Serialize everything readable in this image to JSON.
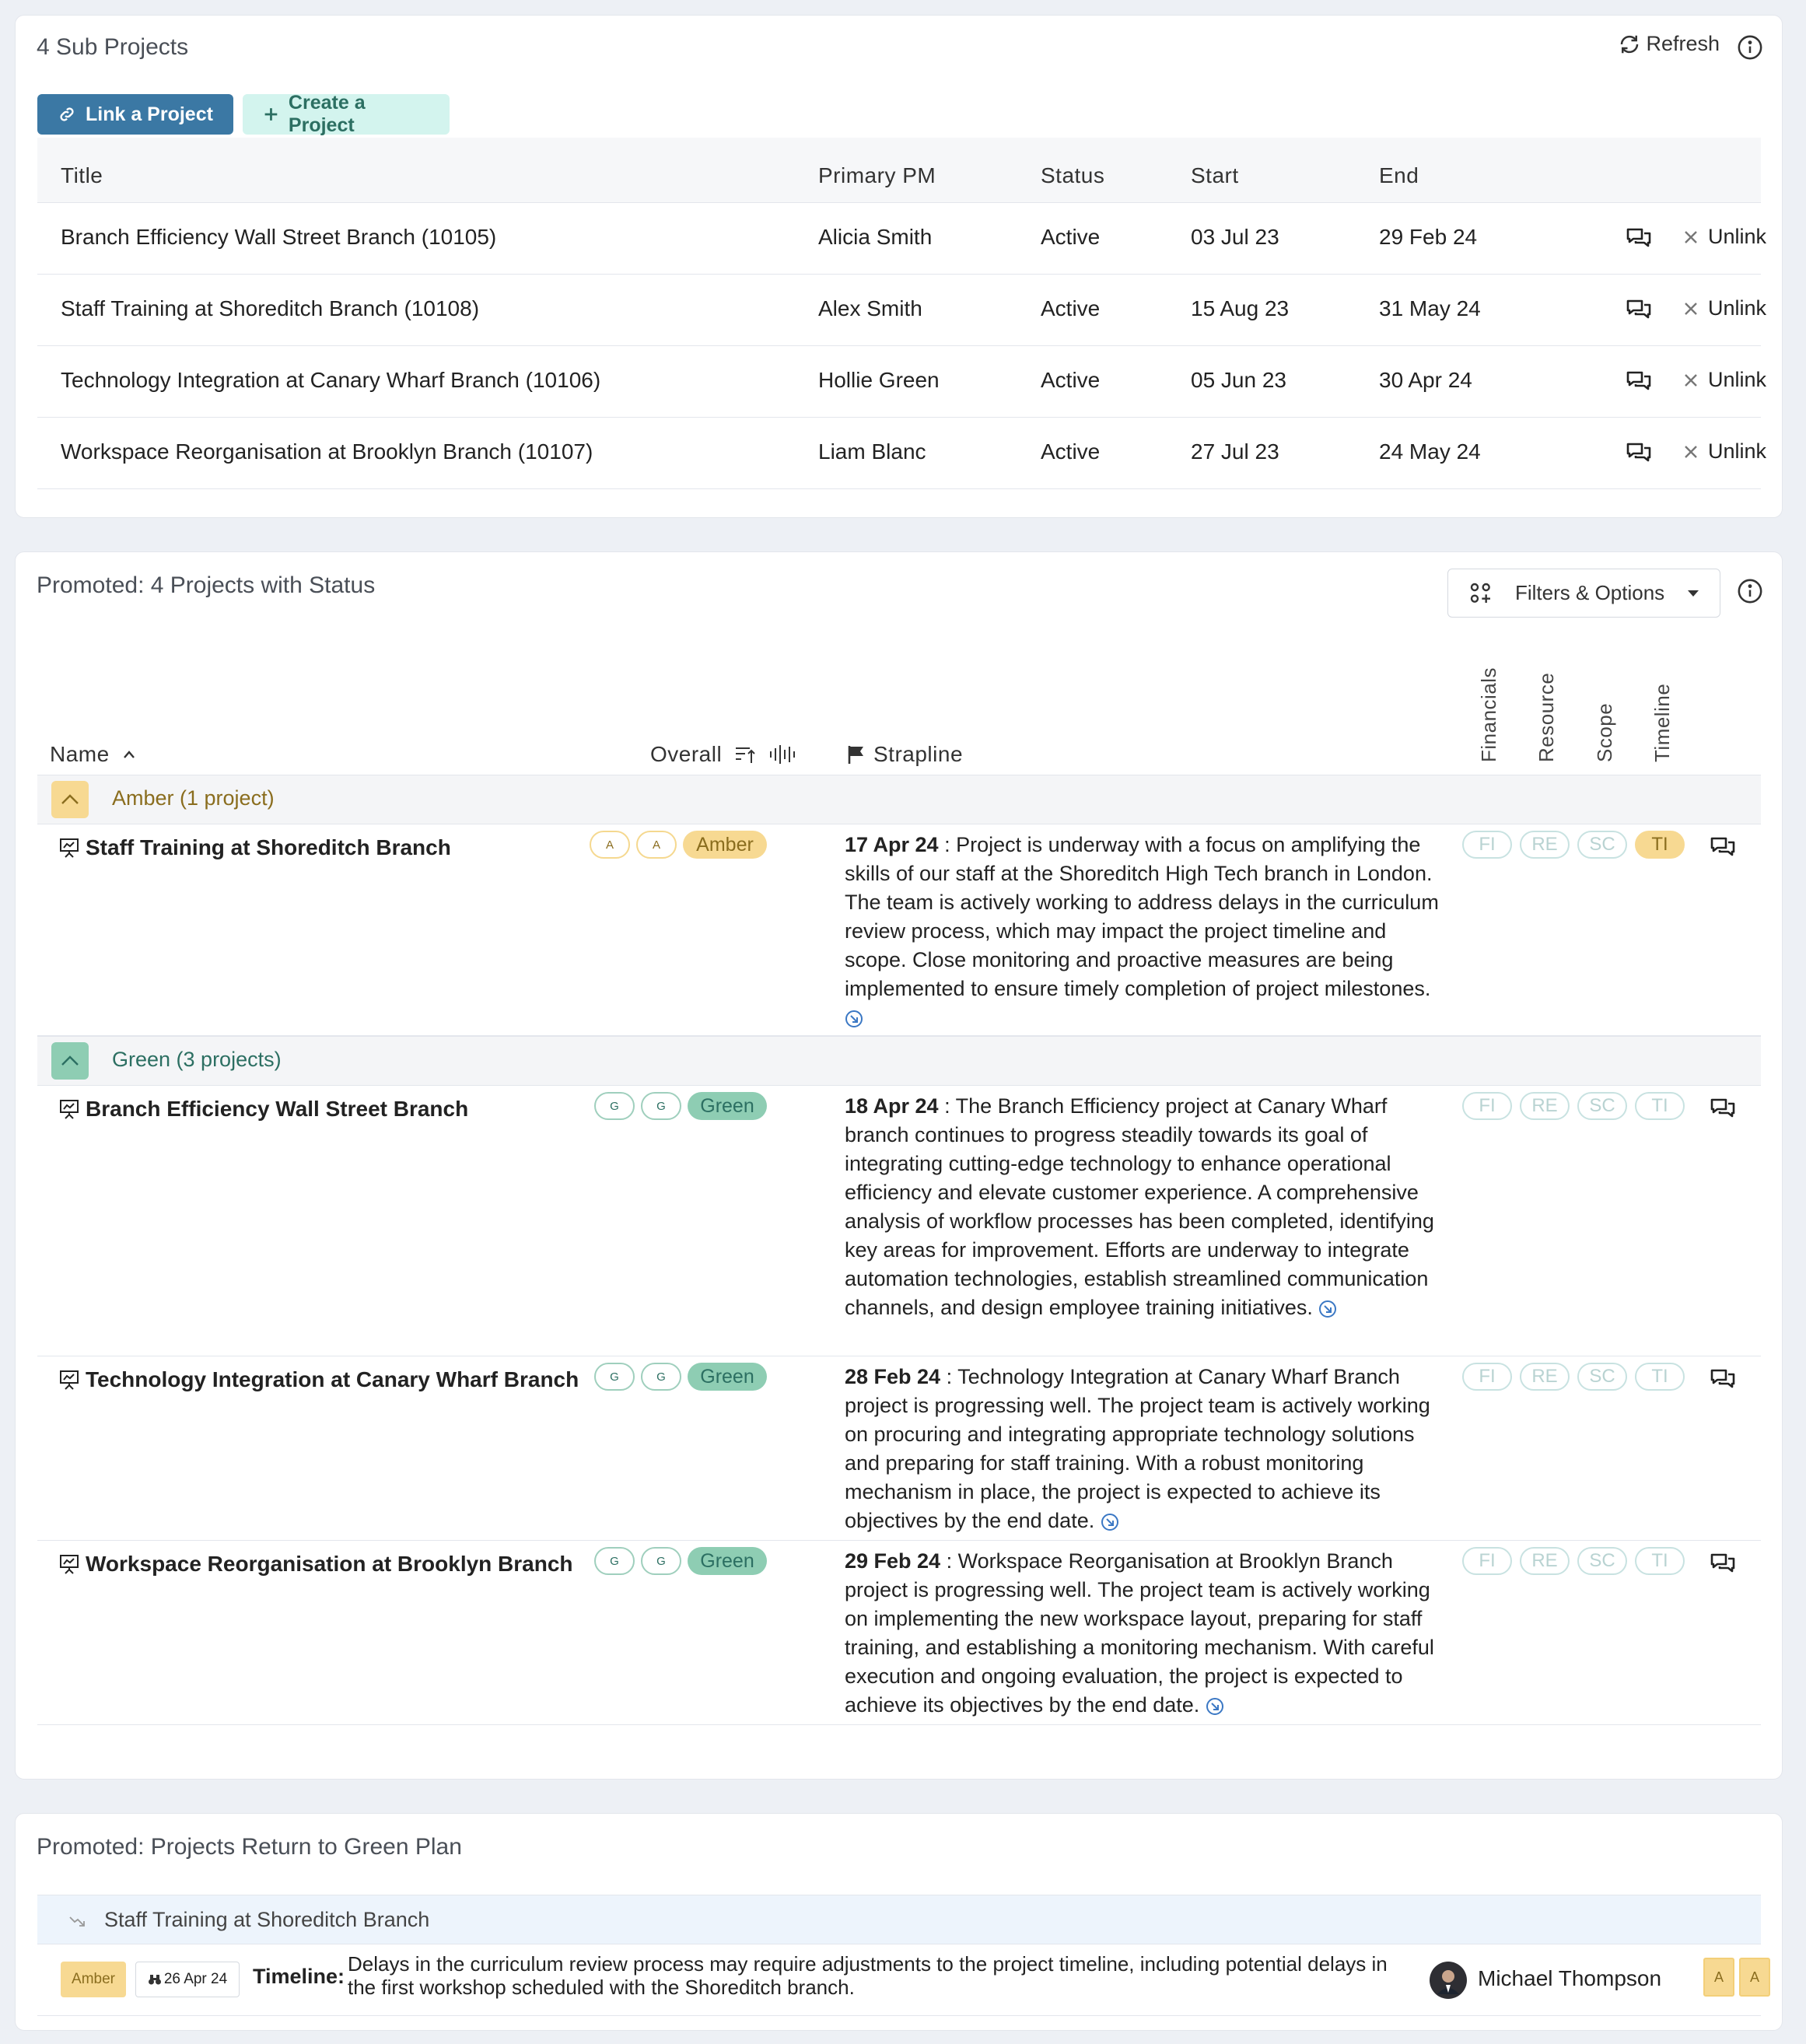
{
  "sub_projects": {
    "title": "4 Sub Projects",
    "refresh_label": "Refresh",
    "link_label": "Link a Project",
    "create_label": "Create a Project",
    "columns": {
      "title": "Title",
      "pm": "Primary PM",
      "status": "Status",
      "start": "Start",
      "end": "End"
    },
    "unlink_label": "Unlink",
    "rows": [
      {
        "title": "Branch Efficiency Wall Street Branch (10105)",
        "pm": "Alicia Smith",
        "status": "Active",
        "start": "03 Jul 23",
        "end": "29 Feb 24"
      },
      {
        "title": "Staff Training at Shoreditch Branch (10108)",
        "pm": "Alex Smith",
        "status": "Active",
        "start": "15 Aug 23",
        "end": "31 May 24"
      },
      {
        "title": "Technology Integration at Canary Wharf Branch (10106)",
        "pm": "Hollie Green",
        "status": "Active",
        "start": "05 Jun 23",
        "end": "30 Apr 24"
      },
      {
        "title": "Workspace Reorganisation at Brooklyn Branch (10107)",
        "pm": "Liam Blanc",
        "status": "Active",
        "start": "27 Jul 23",
        "end": "24 May 24"
      }
    ]
  },
  "promoted": {
    "title": "Promoted: 4 Projects with Status",
    "filters_label": "Filters & Options",
    "columns": {
      "name": "Name",
      "overall": "Overall",
      "strapline": "Strapline",
      "financials": "Financials",
      "resource": "Resource",
      "scope": "Scope",
      "timeline": "Timeline"
    },
    "dim_labels": {
      "fi": "FI",
      "re": "RE",
      "sc": "SC",
      "ti": "TI"
    },
    "groups": [
      {
        "label": "Amber (1 project)",
        "color": "#f7d992",
        "text_color": "#8a6d1e"
      },
      {
        "label": "Green (3 projects)",
        "color": "#8ecdb3",
        "text_color": "#2c6f62"
      }
    ],
    "projects": [
      {
        "name": "Staff Training at Shoreditch Branch",
        "small1": "A",
        "small2": "A",
        "status": "Amber",
        "date": "17 Apr 24",
        "text": "Project is underway with a focus on amplifying the skills of our staff at the Shoreditch High Tech branch in London. The team is actively working to address delays in the curriculum review process, which may impact the project timeline and scope. Close monitoring and proactive measures are being implemented to ensure timely completion of project milestones."
      },
      {
        "name": "Branch Efficiency Wall Street Branch",
        "small1": "G",
        "small2": "G",
        "status": "Green",
        "date": "18 Apr 24",
        "text": "The Branch Efficiency project at Canary Wharf branch continues to progress steadily towards its goal of integrating cutting-edge technology to enhance operational efficiency and elevate customer experience. A comprehensive analysis of workflow processes has been completed, identifying key areas for improvement. Efforts are underway to integrate automation technologies, establish streamlined communication channels, and design employee training initiatives."
      },
      {
        "name": "Technology Integration at Canary Wharf Branch",
        "small1": "G",
        "small2": "G",
        "status": "Green",
        "date": "28 Feb 24",
        "text": "Technology Integration at Canary Wharf Branch project is progressing well. The project team is actively working on procuring and integrating appropriate technology solutions and preparing for staff training. With a robust monitoring mechanism in place, the project is expected to achieve its objectives by the end date."
      },
      {
        "name": "Workspace Reorganisation at Brooklyn Branch",
        "small1": "G",
        "small2": "G",
        "status": "Green",
        "date": "29 Feb 24",
        "text": "Workspace Reorganisation at Brooklyn Branch project is progressing well. The project team is actively working on implementing the new workspace layout, preparing for staff training, and establishing a monitoring mechanism. With careful execution and ongoing evaluation, the project is expected to achieve its objectives by the end date."
      }
    ]
  },
  "return_to_green": {
    "title": "Promoted: Projects Return to Green Plan",
    "project": "Staff Training at Shoreditch Branch",
    "status": "Amber",
    "date": "26 Apr 24",
    "category": "Timeline:",
    "text": "Delays in the curriculum review process may require adjustments to the project timeline, including potential delays in the first workshop scheduled with the Shoreditch branch.",
    "owner": "Michael Thompson",
    "badge1": "A",
    "badge2": "A"
  },
  "colors": {
    "amber": "#f7d992",
    "green": "#8ecdb3",
    "primary": "#3b78a4",
    "teal_light": "#d3f4ee"
  }
}
